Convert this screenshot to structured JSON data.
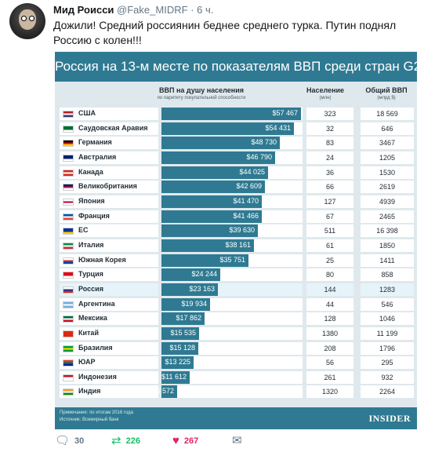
{
  "tweet": {
    "display_name": "Мид Роисси",
    "handle": "@Fake_MIDRF",
    "separator": "·",
    "time": "6 ч.",
    "text": "Дожили! Средний россиянин беднее среднего турка. Путин поднял Россию с колен!!!"
  },
  "card": {
    "title": "Россия на 13-м месте по показателям ВВП среди стран G20",
    "columns": {
      "gdp_per_capita": "ВВП на душу населения",
      "gdp_per_capita_sub": "по паритету покупательной способности",
      "population": "Население",
      "population_sub": "(млн)",
      "total_gdp": "Общий ВВП",
      "total_gdp_sub": "(млрд $)"
    },
    "note": "Примечание: по итогам 2016 года",
    "source": "Источник: Всемирный банк",
    "brand": "INSIDER",
    "rows": [
      {
        "country": "США",
        "gdp_label": "$57 467",
        "gdp_value": 57467,
        "population": "323",
        "total": "18 569",
        "flag": [
          "#b22234",
          "#ffffff",
          "#3c3b6e"
        ]
      },
      {
        "country": "Саудовская Аравия",
        "gdp_label": "$54 431",
        "gdp_value": 54431,
        "population": "32",
        "total": "646",
        "flag": [
          "#006c35",
          "#006c35",
          "#ffffff"
        ]
      },
      {
        "country": "Германия",
        "gdp_label": "$48 730",
        "gdp_value": 48730,
        "population": "83",
        "total": "3467",
        "flag": [
          "#000000",
          "#dd0000",
          "#ffce00"
        ]
      },
      {
        "country": "Австралия",
        "gdp_label": "$46 790",
        "gdp_value": 46790,
        "population": "24",
        "total": "1205",
        "flag": [
          "#012169",
          "#012169",
          "#ffffff"
        ]
      },
      {
        "country": "Канада",
        "gdp_label": "$44 025",
        "gdp_value": 44025,
        "population": "36",
        "total": "1530",
        "flag": [
          "#d52b1e",
          "#ffffff",
          "#d52b1e"
        ]
      },
      {
        "country": "Великобритания",
        "gdp_label": "$42 609",
        "gdp_value": 42609,
        "population": "66",
        "total": "2619",
        "flag": [
          "#012169",
          "#c8102e",
          "#ffffff"
        ]
      },
      {
        "country": "Япония",
        "gdp_label": "$41 470",
        "gdp_value": 41470,
        "population": "127",
        "total": "4939",
        "flag": [
          "#ffffff",
          "#bc002d",
          "#ffffff"
        ]
      },
      {
        "country": "Франция",
        "gdp_label": "$41 466",
        "gdp_value": 41466,
        "population": "67",
        "total": "2465",
        "flag": [
          "#0055a4",
          "#ffffff",
          "#ef4135"
        ]
      },
      {
        "country": "ЕС",
        "gdp_label": "$39 630",
        "gdp_value": 39630,
        "population": "511",
        "total": "16 398",
        "flag": [
          "#003399",
          "#003399",
          "#ffcc00"
        ]
      },
      {
        "country": "Италия",
        "gdp_label": "$38 161",
        "gdp_value": 38161,
        "population": "61",
        "total": "1850",
        "flag": [
          "#009246",
          "#ffffff",
          "#ce2b37"
        ]
      },
      {
        "country": "Южная Корея",
        "gdp_label": "$35 751",
        "gdp_value": 35751,
        "population": "25",
        "total": "1411",
        "flag": [
          "#ffffff",
          "#cd2e3a",
          "#0047a0"
        ]
      },
      {
        "country": "Турция",
        "gdp_label": "$24 244",
        "gdp_value": 24244,
        "population": "80",
        "total": "858",
        "flag": [
          "#e30a17",
          "#e30a17",
          "#ffffff"
        ]
      },
      {
        "country": "Россия",
        "gdp_label": "$23 163",
        "gdp_value": 23163,
        "population": "144",
        "total": "1283",
        "flag": [
          "#ffffff",
          "#0039a6",
          "#d52b1e"
        ],
        "highlight": true
      },
      {
        "country": "Аргентина",
        "gdp_label": "$19 934",
        "gdp_value": 19934,
        "population": "44",
        "total": "546",
        "flag": [
          "#74acdf",
          "#ffffff",
          "#74acdf"
        ]
      },
      {
        "country": "Мексика",
        "gdp_label": "$17 862",
        "gdp_value": 17862,
        "population": "128",
        "total": "1046",
        "flag": [
          "#006847",
          "#ffffff",
          "#ce1126"
        ]
      },
      {
        "country": "Китай",
        "gdp_label": "$15 535",
        "gdp_value": 15535,
        "population": "1380",
        "total": "11 199",
        "flag": [
          "#de2910",
          "#de2910",
          "#de2910"
        ]
      },
      {
        "country": "Бразилия",
        "gdp_label": "$15 128",
        "gdp_value": 15128,
        "population": "208",
        "total": "1796",
        "flag": [
          "#009c3b",
          "#ffdf00",
          "#009c3b"
        ]
      },
      {
        "country": "ЮАР",
        "gdp_label": "$13 225",
        "gdp_value": 13225,
        "population": "56",
        "total": "295",
        "flag": [
          "#de3831",
          "#007a4d",
          "#002395"
        ]
      },
      {
        "country": "Индонезия",
        "gdp_label": "$11 612",
        "gdp_value": 11612,
        "population": "261",
        "total": "932",
        "flag": [
          "#ce1126",
          "#ffffff",
          "#ffffff"
        ]
      },
      {
        "country": "Индия",
        "gdp_label": "$6 572",
        "gdp_value": 6572,
        "population": "1320",
        "total": "2264",
        "flag": [
          "#ff9933",
          "#ffffff",
          "#138808"
        ]
      }
    ]
  },
  "chart_data": {
    "type": "bar",
    "title": "Россия на 13-м месте по показателям ВВП среди стран G20",
    "categories": [
      "США",
      "Саудовская Аравия",
      "Германия",
      "Австралия",
      "Канада",
      "Великобритания",
      "Япония",
      "Франция",
      "ЕС",
      "Италия",
      "Южная Корея",
      "Турция",
      "Россия",
      "Аргентина",
      "Мексика",
      "Китай",
      "Бразилия",
      "ЮАР",
      "Индонезия",
      "Индия"
    ],
    "series": [
      {
        "name": "ВВП на душу населения",
        "values": [
          57467,
          54431,
          48730,
          46790,
          44025,
          42609,
          41470,
          41466,
          39630,
          38161,
          35751,
          24244,
          23163,
          19934,
          17862,
          15535,
          15128,
          13225,
          11612,
          6572
        ]
      }
    ],
    "population_mln": [
      323,
      32,
      83,
      24,
      36,
      66,
      127,
      67,
      511,
      61,
      25,
      80,
      144,
      44,
      128,
      1380,
      208,
      56,
      261,
      1320
    ],
    "total_gdp_bln": [
      18569,
      646,
      3467,
      1205,
      1530,
      2619,
      4939,
      2465,
      16398,
      1850,
      1411,
      858,
      1283,
      546,
      1046,
      11199,
      1796,
      295,
      932,
      2264
    ]
  },
  "actions": {
    "reply_count": "30",
    "retweet_count": "226",
    "like_count": "267"
  },
  "icons": {
    "reply": "reply-icon",
    "retweet": "retweet-icon",
    "like": "heart-icon",
    "dm": "envelope-icon"
  },
  "colors": {
    "accent": "#2f7a92",
    "card_bg": "#dfe9ed",
    "retweet": "#17bf63",
    "like": "#e0245e"
  }
}
